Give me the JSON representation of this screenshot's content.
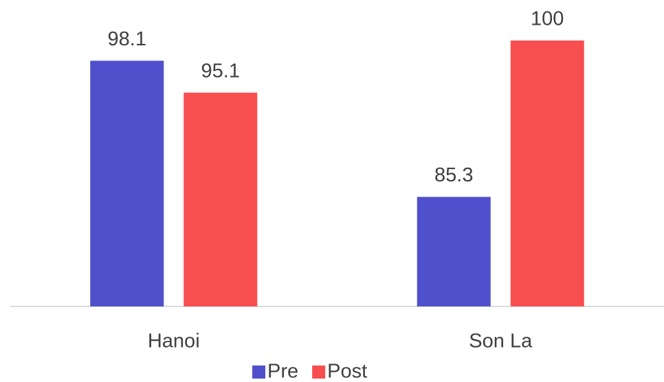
{
  "chart_data": {
    "type": "bar",
    "categories": [
      "Hanoi",
      "Son La"
    ],
    "series": [
      {
        "name": "Pre",
        "color": "#5050cc",
        "values": [
          98.1,
          85.3
        ]
      },
      {
        "name": "Post",
        "color": "#f74f50",
        "values": [
          95.1,
          100
        ]
      }
    ],
    "ylim": [
      75,
      100
    ],
    "legend": "bottom"
  }
}
